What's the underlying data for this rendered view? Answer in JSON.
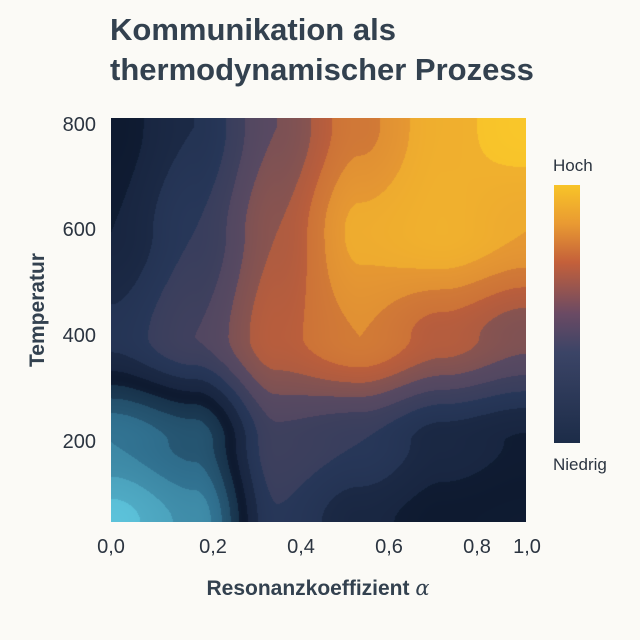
{
  "title_lines": [
    "Kommunikation als",
    "thermodynamischer Prozess"
  ],
  "chart_data": {
    "type": "heatmap",
    "style": "filled-contour",
    "title": "Kommunikation als thermodynamischer Prozess",
    "xlabel": "Resonanzkoeffizient",
    "xlabel_symbol": "α",
    "ylabel": "Temperatur",
    "xlim": [
      0.0,
      1.0
    ],
    "ylim": [
      50,
      815
    ],
    "x_ticks": [
      "0,0",
      "0,2",
      "0,4",
      "0,6",
      "0,8",
      "1,0"
    ],
    "x_tick_values": [
      0.0,
      0.2,
      0.4,
      0.6,
      0.8,
      1.0
    ],
    "y_ticks": [
      "200",
      "400",
      "600",
      "800"
    ],
    "y_tick_values": [
      200,
      400,
      600,
      800
    ],
    "grid_x": [
      0.0,
      0.2,
      0.4,
      0.6,
      0.8,
      1.0
    ],
    "grid_y": [
      800,
      600,
      400,
      200,
      50
    ],
    "z": [
      [
        0.0,
        0.15,
        0.45,
        0.72,
        0.92,
        1.0
      ],
      [
        0.05,
        0.25,
        0.55,
        0.88,
        0.95,
        0.85
      ],
      [
        0.18,
        0.35,
        0.62,
        0.75,
        0.6,
        0.48
      ],
      [
        -0.35,
        -0.22,
        0.32,
        0.25,
        0.1,
        0.04
      ],
      [
        -0.6,
        -0.42,
        0.24,
        0.08,
        0.0,
        -0.02
      ]
    ],
    "colorbar": {
      "high_label": "Hoch",
      "low_label": "Niedrig",
      "high_color": "#f8c428",
      "low_color": "#1c2c48"
    },
    "colormap": [
      [
        -0.6,
        "#5cc2da"
      ],
      [
        -0.3,
        "#30708f"
      ],
      [
        0.0,
        "#0e1a30"
      ],
      [
        0.22,
        "#28385a"
      ],
      [
        0.42,
        "#5a4a62"
      ],
      [
        0.62,
        "#bf5f3a"
      ],
      [
        0.82,
        "#e79a32"
      ],
      [
        1.0,
        "#f9c62a"
      ]
    ],
    "legend": "right",
    "grid": false
  }
}
